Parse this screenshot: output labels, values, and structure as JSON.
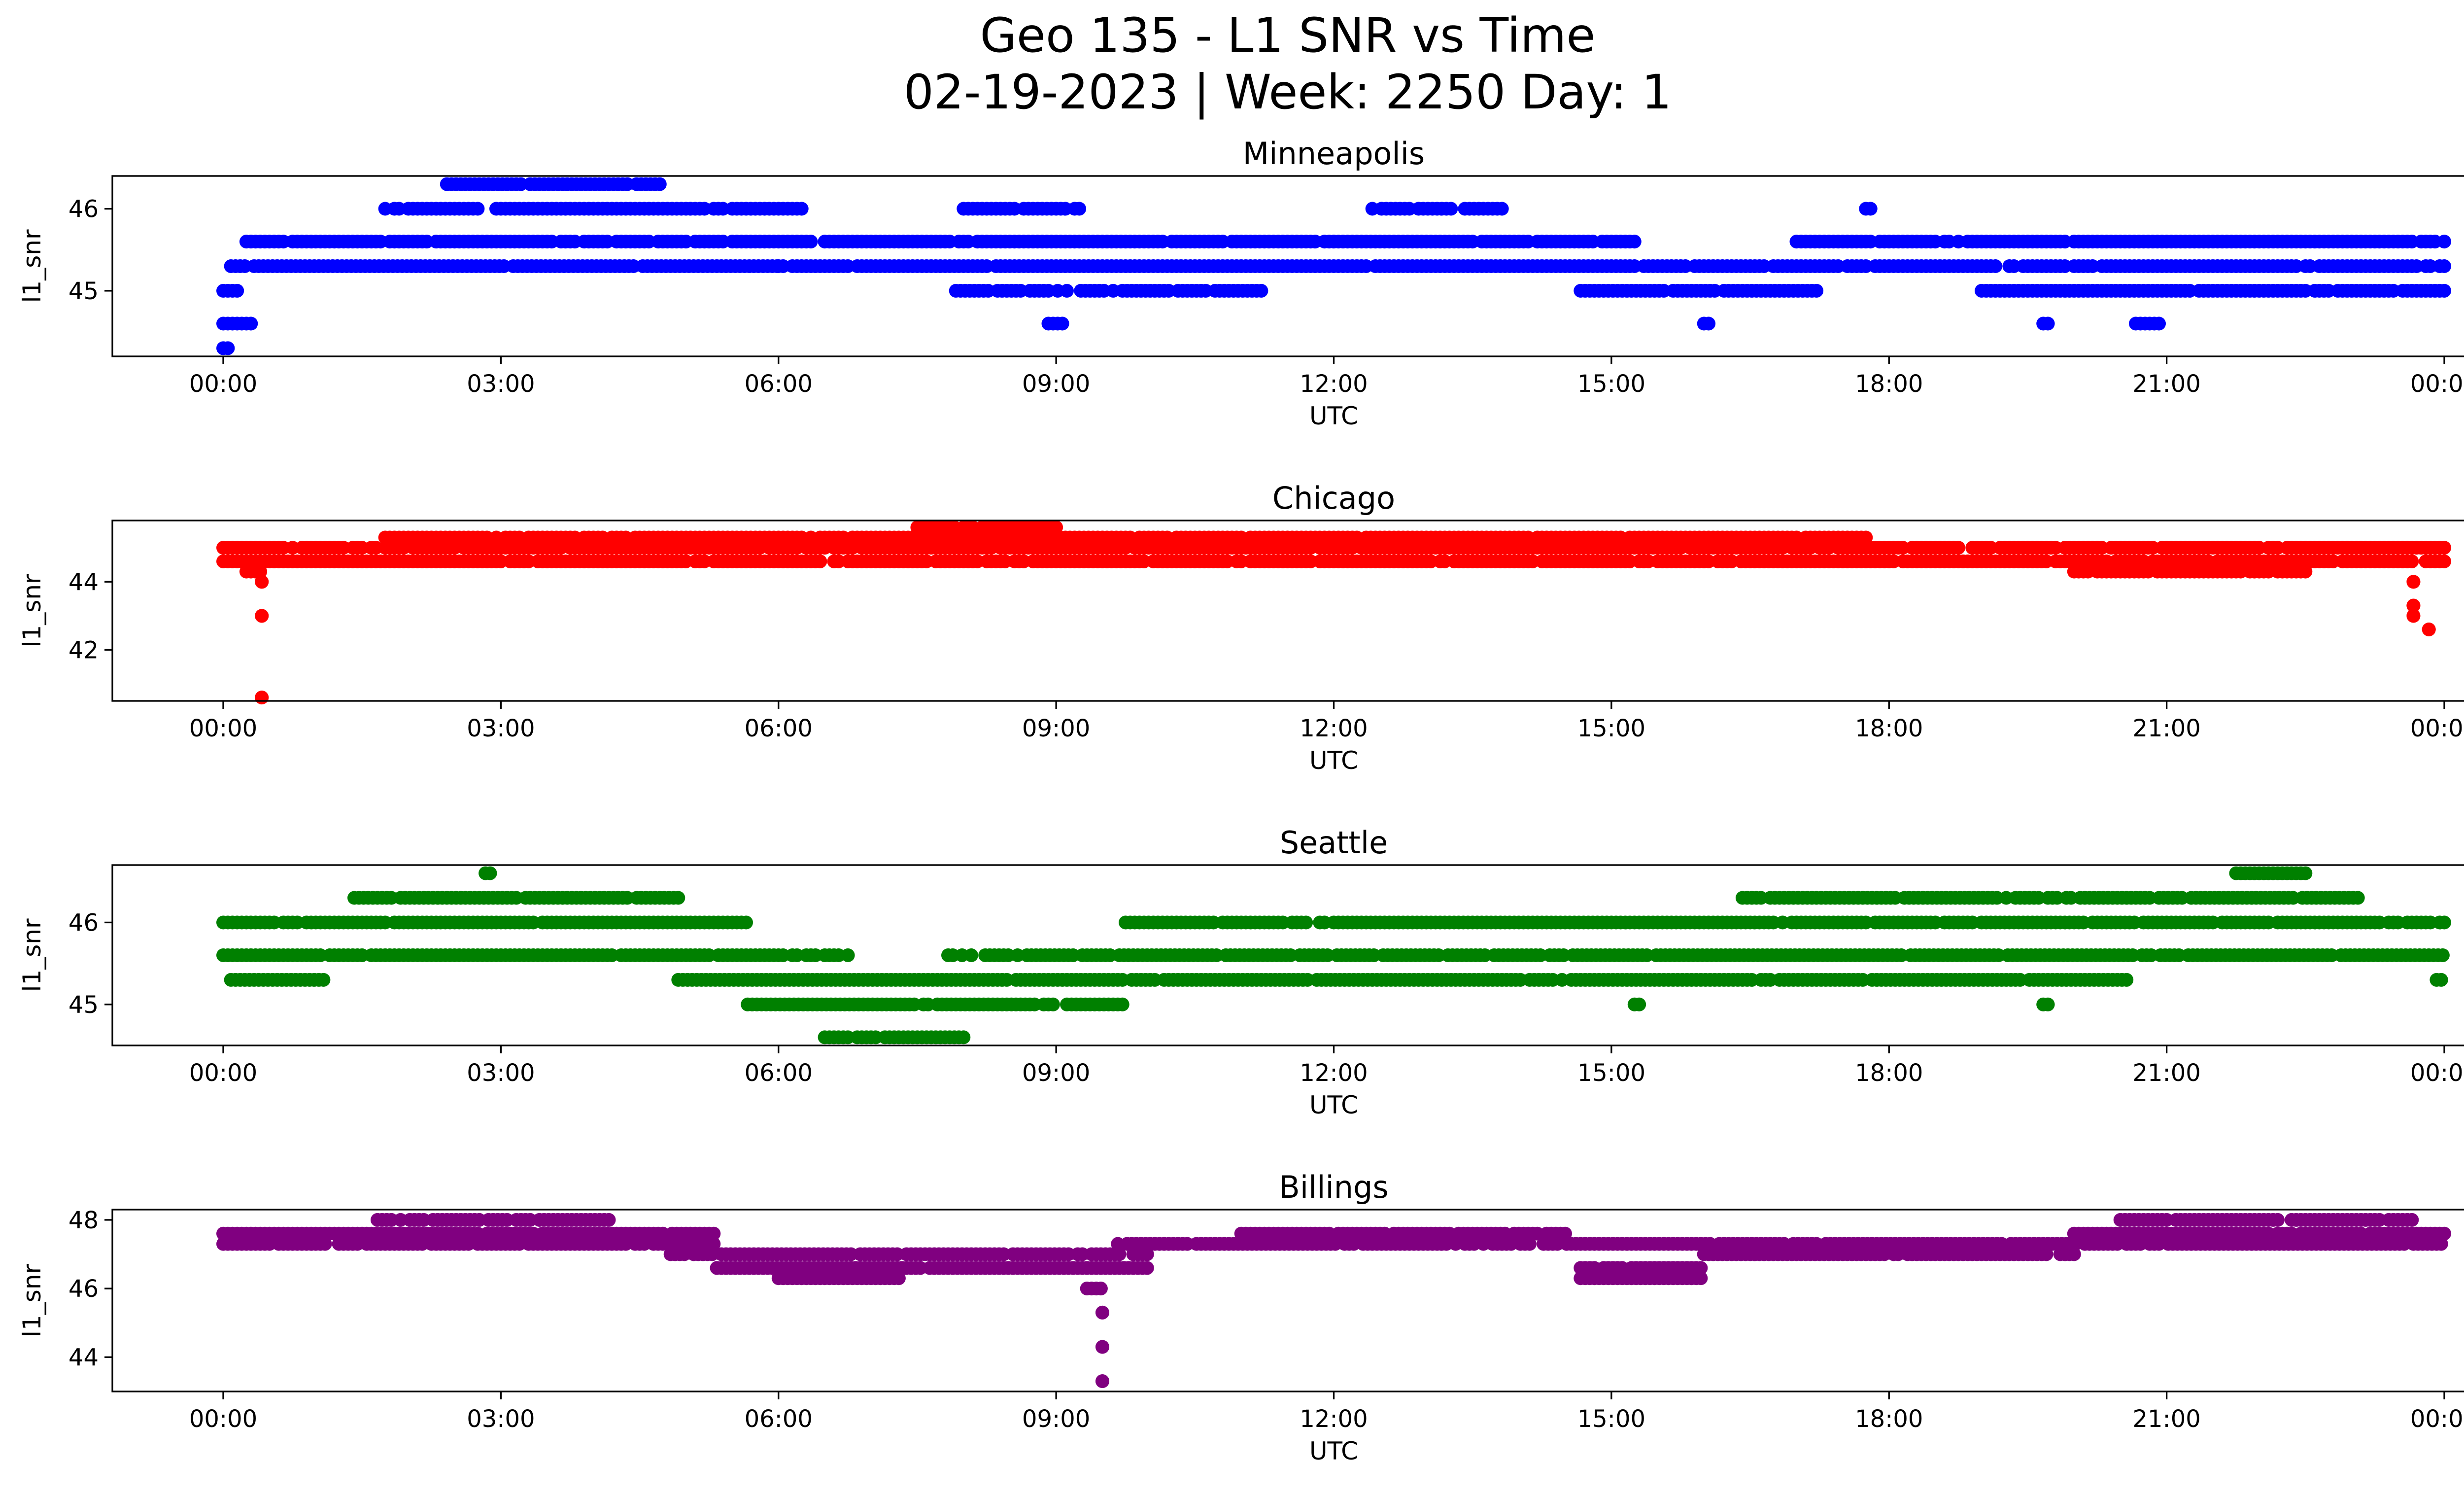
{
  "figure": {
    "title_line1": "Geo 135 - L1 SNR vs Time",
    "title_line2": "02-19-2023 | Week: 2250 Day: 1"
  },
  "chart_data": [
    {
      "type": "scatter",
      "title": "Minneapolis",
      "xlabel": "UTC",
      "ylabel": "l1_snr",
      "color": "#0000ff",
      "xlim": [
        "00:00",
        "24:00"
      ],
      "ylim": [
        44.2,
        46.4
      ],
      "xticks": [
        "00:00",
        "03:00",
        "06:00",
        "09:00",
        "12:00",
        "15:00",
        "18:00",
        "21:00",
        "00:00"
      ],
      "yticks": [
        45,
        46
      ],
      "series": [
        {
          "values": [
            {
              "x_start": "00:00",
              "x_end": "00:05",
              "y": 44.3
            },
            {
              "x_start": "00:00",
              "x_end": "00:20",
              "y": 44.6
            },
            {
              "x_start": "00:00",
              "x_end": "00:10",
              "y": 45.0
            },
            {
              "x_start": "00:05",
              "x_end": "06:00",
              "y": 45.3
            },
            {
              "x_start": "00:15",
              "x_end": "12:00",
              "y": 45.6
            },
            {
              "x_start": "01:45",
              "x_end": "06:15",
              "y": 46.0
            },
            {
              "x_start": "02:25",
              "x_end": "04:45",
              "y": 46.3
            },
            {
              "x_start": "06:00",
              "x_end": "24:00",
              "y": 45.3
            },
            {
              "x_start": "07:55",
              "x_end": "11:15",
              "y": 45.0
            },
            {
              "x_start": "08:00",
              "x_end": "09:15",
              "y": 46.0
            },
            {
              "x_start": "08:55",
              "x_end": "09:05",
              "y": 44.6
            },
            {
              "x_start": "12:00",
              "x_end": "15:15",
              "y": 45.6
            },
            {
              "x_start": "12:25",
              "x_end": "13:50",
              "y": 46.0
            },
            {
              "x_start": "14:40",
              "x_end": "17:15",
              "y": 45.0
            },
            {
              "x_start": "16:00",
              "x_end": "16:05",
              "y": 44.6
            },
            {
              "x_start": "17:00",
              "x_end": "24:00",
              "y": 45.6
            },
            {
              "x_start": "17:45",
              "x_end": "17:50",
              "y": 46.0
            },
            {
              "x_start": "19:00",
              "x_end": "24:00",
              "y": 45.0
            },
            {
              "x_start": "19:40",
              "x_end": "19:45",
              "y": 44.6
            },
            {
              "x_start": "20:40",
              "x_end": "20:55",
              "y": 44.6
            }
          ]
        }
      ]
    },
    {
      "type": "scatter",
      "title": "Chicago",
      "xlabel": "UTC",
      "ylabel": "l1_snr",
      "color": "#ff0000",
      "xlim": [
        "00:00",
        "24:00"
      ],
      "ylim": [
        40.5,
        45.8
      ],
      "xticks": [
        "00:00",
        "03:00",
        "06:00",
        "09:00",
        "12:00",
        "15:00",
        "18:00",
        "21:00",
        "00:00"
      ],
      "yticks": [
        42,
        44
      ],
      "series": [
        {
          "values": [
            {
              "x_start": "00:00",
              "x_end": "24:00",
              "y": 45.0
            },
            {
              "x_start": "00:00",
              "x_end": "24:00",
              "y": 44.6
            },
            {
              "x_start": "01:45",
              "x_end": "17:45",
              "y": 45.3
            },
            {
              "x_start": "07:30",
              "x_end": "09:00",
              "y": 45.6
            },
            {
              "x_start": "00:15",
              "x_end": "00:25",
              "y": 44.3
            },
            {
              "x_start": "20:00",
              "x_end": "22:30",
              "y": 44.3
            },
            {
              "x_start": "00:25",
              "x_end": "00:25",
              "y": 44.0
            },
            {
              "x_start": "00:25",
              "x_end": "00:25",
              "y": 43.0
            },
            {
              "x_start": "00:25",
              "x_end": "00:25",
              "y": 40.6
            },
            {
              "x_start": "23:40",
              "x_end": "23:40",
              "y": 44.0
            },
            {
              "x_start": "23:40",
              "x_end": "23:40",
              "y": 43.3
            },
            {
              "x_start": "23:40",
              "x_end": "23:40",
              "y": 43.0
            },
            {
              "x_start": "23:50",
              "x_end": "23:50",
              "y": 42.6
            }
          ]
        }
      ]
    },
    {
      "type": "scatter",
      "title": "Seattle",
      "xlabel": "UTC",
      "ylabel": "l1_snr",
      "color": "#008000",
      "xlim": [
        "00:00",
        "24:00"
      ],
      "ylim": [
        44.5,
        46.7
      ],
      "xticks": [
        "00:00",
        "03:00",
        "06:00",
        "09:00",
        "12:00",
        "15:00",
        "18:00",
        "21:00",
        "00:00"
      ],
      "yticks": [
        45,
        46
      ],
      "series": [
        {
          "values": [
            {
              "x_start": "00:00",
              "x_end": "05:40",
              "y": 46.0
            },
            {
              "x_start": "00:00",
              "x_end": "06:45",
              "y": 45.6
            },
            {
              "x_start": "00:05",
              "x_end": "01:10",
              "y": 45.3
            },
            {
              "x_start": "01:25",
              "x_end": "04:55",
              "y": 46.3
            },
            {
              "x_start": "02:50",
              "x_end": "02:55",
              "y": 46.6
            },
            {
              "x_start": "04:55",
              "x_end": "20:35",
              "y": 45.3
            },
            {
              "x_start": "05:40",
              "x_end": "09:45",
              "y": 45.0
            },
            {
              "x_start": "06:30",
              "x_end": "08:00",
              "y": 44.6
            },
            {
              "x_start": "07:50",
              "x_end": "24:00",
              "y": 45.6
            },
            {
              "x_start": "09:45",
              "x_end": "24:00",
              "y": 46.0
            },
            {
              "x_start": "15:15",
              "x_end": "15:20",
              "y": 45.0
            },
            {
              "x_start": "16:25",
              "x_end": "23:05",
              "y": 46.3
            },
            {
              "x_start": "19:40",
              "x_end": "19:45",
              "y": 45.0
            },
            {
              "x_start": "21:45",
              "x_end": "22:30",
              "y": 46.6
            },
            {
              "x_start": "23:55",
              "x_end": "24:00",
              "y": 45.3
            }
          ]
        }
      ]
    },
    {
      "type": "scatter",
      "title": "Billings",
      "xlabel": "UTC",
      "ylabel": "l1_snr",
      "color": "#800080",
      "xlim": [
        "00:00",
        "24:00"
      ],
      "ylim": [
        43.0,
        48.3
      ],
      "xticks": [
        "00:00",
        "03:00",
        "06:00",
        "09:00",
        "12:00",
        "15:00",
        "18:00",
        "21:00",
        "00:00"
      ],
      "yticks": [
        44,
        46,
        48
      ],
      "series": [
        {
          "values": [
            {
              "x_start": "00:00",
              "x_end": "05:20",
              "y": 47.6
            },
            {
              "x_start": "00:00",
              "x_end": "05:20",
              "y": 47.3
            },
            {
              "x_start": "01:40",
              "x_end": "04:10",
              "y": 48.0
            },
            {
              "x_start": "04:50",
              "x_end": "10:00",
              "y": 47.0
            },
            {
              "x_start": "05:20",
              "x_end": "10:00",
              "y": 46.6
            },
            {
              "x_start": "06:00",
              "x_end": "07:20",
              "y": 46.3
            },
            {
              "x_start": "09:20",
              "x_end": "09:30",
              "y": 46.0
            },
            {
              "x_start": "09:30",
              "x_end": "09:30",
              "y": 45.3
            },
            {
              "x_start": "09:30",
              "x_end": "09:30",
              "y": 44.3
            },
            {
              "x_start": "09:30",
              "x_end": "09:30",
              "y": 43.3
            },
            {
              "x_start": "09:40",
              "x_end": "24:00",
              "y": 47.3
            },
            {
              "x_start": "11:00",
              "x_end": "14:30",
              "y": 47.6
            },
            {
              "x_start": "14:40",
              "x_end": "16:00",
              "y": 46.6
            },
            {
              "x_start": "14:40",
              "x_end": "16:00",
              "y": 46.3
            },
            {
              "x_start": "16:00",
              "x_end": "20:00",
              "y": 47.0
            },
            {
              "x_start": "20:00",
              "x_end": "24:00",
              "y": 47.6
            },
            {
              "x_start": "20:30",
              "x_end": "23:40",
              "y": 48.0
            }
          ]
        }
      ]
    }
  ]
}
